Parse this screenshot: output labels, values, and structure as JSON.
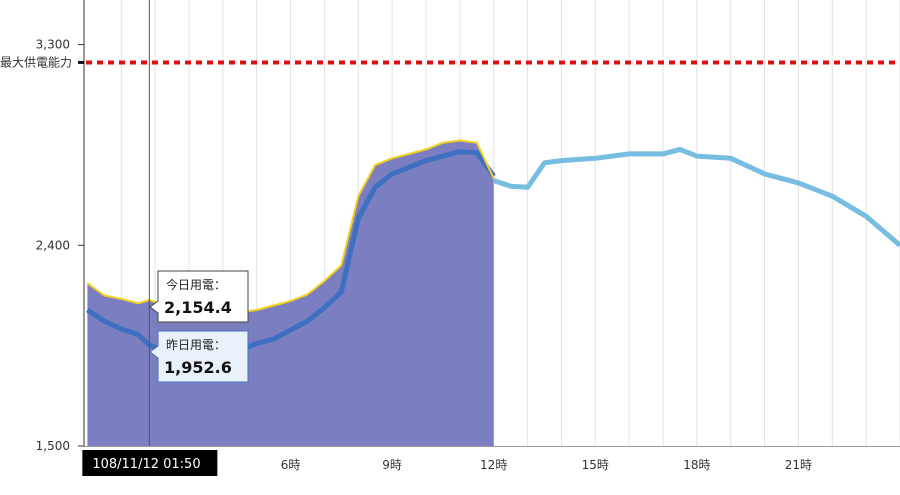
{
  "chart_data": {
    "type": "area",
    "title": "",
    "xlabel": "",
    "ylabel": "",
    "x_range_hours": [
      -0.1,
      24
    ],
    "ylim": [
      1500,
      3500
    ],
    "yticks": [
      {
        "value": 1500,
        "label": "1,500"
      },
      {
        "value": 2400,
        "label": "2,400"
      },
      {
        "value": 3300,
        "label": "3,300"
      }
    ],
    "xticks": [
      {
        "value": 6,
        "label": "6時"
      },
      {
        "value": 9,
        "label": "9時"
      },
      {
        "value": 12,
        "label": "12時"
      },
      {
        "value": 15,
        "label": "15時"
      },
      {
        "value": 18,
        "label": "18時"
      },
      {
        "value": 21,
        "label": "21時"
      }
    ],
    "max_supply": {
      "label": "最大供電能力",
      "value": 3220
    },
    "crosshair": {
      "x": 1.83,
      "label": "108/11/12 01:50"
    },
    "colors": {
      "today_fill": "#7b7fc2",
      "today_line": "#f3d11e",
      "yesterday": "#3f6fc0",
      "forecast": "#77bde2",
      "max_line": "#e01010"
    },
    "series": [
      {
        "key": "today",
        "style": "area",
        "x": [
          0,
          0.5,
          1,
          1.5,
          1.83,
          2.5,
          3,
          3.5,
          4,
          4.5,
          5,
          5.5,
          6,
          6.5,
          7,
          7.5,
          8,
          8.5,
          9,
          9.5,
          10,
          10.5,
          11,
          11.5,
          12
        ],
        "values": [
          2230,
          2175,
          2160,
          2140,
          2154.4,
          2120,
          2090,
          2085,
          2090,
          2100,
          2110,
          2130,
          2150,
          2180,
          2240,
          2310,
          2620,
          2760,
          2790,
          2810,
          2830,
          2860,
          2870,
          2860,
          2700
        ]
      },
      {
        "key": "yesterday",
        "style": "line",
        "x": [
          0,
          0.5,
          1,
          1.5,
          1.83,
          2.5,
          3,
          3.5,
          4,
          4.5,
          5,
          5.5,
          6,
          6.5,
          7,
          7.5,
          8,
          8.5,
          9,
          9.5,
          10,
          10.5,
          11,
          11.5,
          12
        ],
        "values": [
          2110,
          2060,
          2025,
          2000,
          1952.6,
          1915,
          1895,
          1880,
          1900,
          1930,
          1960,
          1980,
          2020,
          2060,
          2120,
          2190,
          2520,
          2660,
          2720,
          2750,
          2780,
          2800,
          2820,
          2815,
          2710
        ]
      },
      {
        "key": "forecast",
        "style": "line",
        "x": [
          12,
          12.5,
          13,
          13.5,
          14,
          15,
          16,
          17,
          17.5,
          18,
          19,
          20,
          21,
          22,
          23,
          24
        ],
        "values": [
          2690,
          2665,
          2660,
          2770,
          2780,
          2790,
          2810,
          2810,
          2830,
          2800,
          2790,
          2720,
          2680,
          2620,
          2530,
          2400
        ]
      }
    ]
  },
  "tooltip": {
    "today_label": "今日用電：",
    "today_value": "2,154.4",
    "yesterday_label": "昨日用電：",
    "yesterday_value": "1,952.6"
  }
}
